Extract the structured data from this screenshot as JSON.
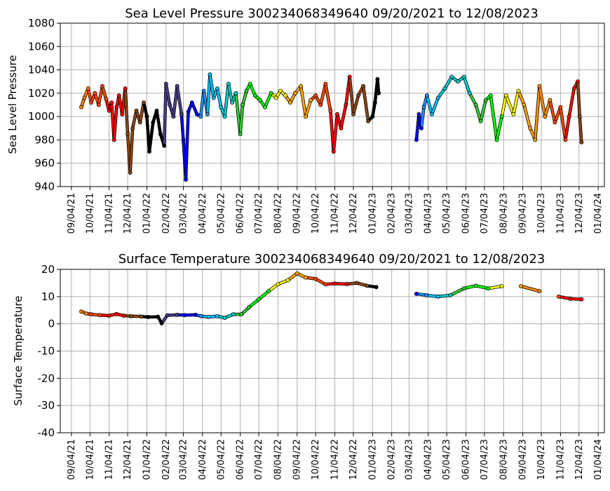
{
  "chart_data": [
    {
      "type": "scatter",
      "title": "Sea Level Pressure 300234068349640  09/20/2021 to 12/08/2023",
      "ylabel": "Sea Level Pressure",
      "xlabel": "",
      "ylim": [
        940,
        1080
      ],
      "yticks": [
        940,
        960,
        980,
        1000,
        1020,
        1040,
        1060,
        1080
      ],
      "grid": true,
      "x_tick_labels": [
        "09/04/21",
        "10/04/21",
        "11/04/21",
        "12/04/21",
        "01/04/22",
        "02/04/22",
        "03/04/22",
        "04/04/22",
        "05/04/22",
        "06/04/22",
        "07/04/22",
        "08/04/22",
        "09/04/22",
        "10/04/22",
        "11/04/22",
        "12/04/22",
        "01/04/23",
        "02/04/23",
        "03/04/23",
        "04/04/23",
        "05/04/23",
        "06/04/23",
        "07/04/23",
        "08/04/23",
        "09/04/23",
        "10/04/23",
        "11/04/23",
        "12/04/23",
        "01/04/24"
      ],
      "colors": [
        "#ff7f00",
        "#ff4500",
        "#ff0000",
        "#8b4513",
        "#000000",
        "#483d8b",
        "#0000ff",
        "#1e90ff",
        "#00bfff",
        "#00ced1",
        "#32cd32",
        "#00ff00",
        "#ffff00",
        "#ffa500",
        "#ff8c00",
        "#ff6347"
      ],
      "points": [
        {
          "x": "09/20/21",
          "y": 1008,
          "c": 0
        },
        {
          "x": "09/25/21",
          "y": 1016,
          "c": 0
        },
        {
          "x": "10/01/21",
          "y": 1024,
          "c": 0
        },
        {
          "x": "10/06/21",
          "y": 1012,
          "c": 1
        },
        {
          "x": "10/12/21",
          "y": 1020,
          "c": 1
        },
        {
          "x": "10/18/21",
          "y": 1010,
          "c": 1
        },
        {
          "x": "10/24/21",
          "y": 1026,
          "c": 1
        },
        {
          "x": "10/30/21",
          "y": 1015,
          "c": 1
        },
        {
          "x": "11/04/21",
          "y": 1005,
          "c": 2
        },
        {
          "x": "11/08/21",
          "y": 1012,
          "c": 2
        },
        {
          "x": "11/12/21",
          "y": 980,
          "c": 2
        },
        {
          "x": "11/16/21",
          "y": 1008,
          "c": 2
        },
        {
          "x": "11/20/21",
          "y": 1018,
          "c": 2
        },
        {
          "x": "11/25/21",
          "y": 1002,
          "c": 2
        },
        {
          "x": "11/30/21",
          "y": 1024,
          "c": 2
        },
        {
          "x": "12/04/21",
          "y": 985,
          "c": 3
        },
        {
          "x": "12/08/21",
          "y": 952,
          "c": 3
        },
        {
          "x": "12/12/21",
          "y": 990,
          "c": 3
        },
        {
          "x": "12/18/21",
          "y": 1005,
          "c": 3
        },
        {
          "x": "12/24/21",
          "y": 995,
          "c": 3
        },
        {
          "x": "12/30/21",
          "y": 1012,
          "c": 3
        },
        {
          "x": "01/04/22",
          "y": 1000,
          "c": 4
        },
        {
          "x": "01/08/22",
          "y": 970,
          "c": 4
        },
        {
          "x": "01/14/22",
          "y": 995,
          "c": 4
        },
        {
          "x": "01/20/22",
          "y": 1005,
          "c": 4
        },
        {
          "x": "01/26/22",
          "y": 985,
          "c": 4
        },
        {
          "x": "02/01/22",
          "y": 975,
          "c": 4
        },
        {
          "x": "02/04/22",
          "y": 1028,
          "c": 5
        },
        {
          "x": "02/10/22",
          "y": 1010,
          "c": 5
        },
        {
          "x": "02/16/22",
          "y": 1000,
          "c": 5
        },
        {
          "x": "02/22/22",
          "y": 1026,
          "c": 5
        },
        {
          "x": "03/01/22",
          "y": 1002,
          "c": 5
        },
        {
          "x": "03/04/22",
          "y": 980,
          "c": 6
        },
        {
          "x": "03/08/22",
          "y": 946,
          "c": 6
        },
        {
          "x": "03/12/22",
          "y": 1004,
          "c": 6
        },
        {
          "x": "03/18/22",
          "y": 1012,
          "c": 6
        },
        {
          "x": "03/26/22",
          "y": 1002,
          "c": 6
        },
        {
          "x": "04/01/22",
          "y": 1000,
          "c": 7
        },
        {
          "x": "04/06/22",
          "y": 1022,
          "c": 7
        },
        {
          "x": "04/12/22",
          "y": 1002,
          "c": 7
        },
        {
          "x": "04/16/22",
          "y": 1036,
          "c": 8
        },
        {
          "x": "04/22/22",
          "y": 1016,
          "c": 8
        },
        {
          "x": "04/28/22",
          "y": 1024,
          "c": 8
        },
        {
          "x": "05/04/22",
          "y": 1008,
          "c": 8
        },
        {
          "x": "05/10/22",
          "y": 1000,
          "c": 9
        },
        {
          "x": "05/16/22",
          "y": 1028,
          "c": 9
        },
        {
          "x": "05/22/22",
          "y": 1012,
          "c": 9
        },
        {
          "x": "05/28/22",
          "y": 1020,
          "c": 9
        },
        {
          "x": "06/04/22",
          "y": 985,
          "c": 10
        },
        {
          "x": "06/08/22",
          "y": 1010,
          "c": 10
        },
        {
          "x": "06/14/22",
          "y": 1022,
          "c": 10
        },
        {
          "x": "06/20/22",
          "y": 1028,
          "c": 11
        },
        {
          "x": "06/28/22",
          "y": 1018,
          "c": 11
        },
        {
          "x": "07/06/22",
          "y": 1014,
          "c": 11
        },
        {
          "x": "07/14/22",
          "y": 1008,
          "c": 11
        },
        {
          "x": "07/24/22",
          "y": 1020,
          "c": 11
        },
        {
          "x": "08/01/22",
          "y": 1016,
          "c": 12
        },
        {
          "x": "08/08/22",
          "y": 1022,
          "c": 12
        },
        {
          "x": "08/16/22",
          "y": 1018,
          "c": 12
        },
        {
          "x": "08/24/22",
          "y": 1012,
          "c": 13
        },
        {
          "x": "09/01/22",
          "y": 1020,
          "c": 13
        },
        {
          "x": "09/10/22",
          "y": 1026,
          "c": 13
        },
        {
          "x": "09/18/22",
          "y": 1000,
          "c": 13
        },
        {
          "x": "09/26/22",
          "y": 1014,
          "c": 13
        },
        {
          "x": "10/04/22",
          "y": 1018,
          "c": 1
        },
        {
          "x": "10/12/22",
          "y": 1010,
          "c": 1
        },
        {
          "x": "10/20/22",
          "y": 1028,
          "c": 1
        },
        {
          "x": "10/28/22",
          "y": 1005,
          "c": 1
        },
        {
          "x": "11/02/22",
          "y": 970,
          "c": 2
        },
        {
          "x": "11/08/22",
          "y": 1002,
          "c": 2
        },
        {
          "x": "11/14/22",
          "y": 990,
          "c": 2
        },
        {
          "x": "11/22/22",
          "y": 1010,
          "c": 2
        },
        {
          "x": "11/28/22",
          "y": 1034,
          "c": 2
        },
        {
          "x": "12/04/22",
          "y": 1002,
          "c": 3
        },
        {
          "x": "12/12/22",
          "y": 1018,
          "c": 3
        },
        {
          "x": "12/20/22",
          "y": 1026,
          "c": 3
        },
        {
          "x": "12/28/22",
          "y": 996,
          "c": 3
        },
        {
          "x": "01/04/23",
          "y": 1000,
          "c": 4
        },
        {
          "x": "01/08/23",
          "y": 1012,
          "c": 4
        },
        {
          "x": "01/12/23",
          "y": 1032,
          "c": 4
        },
        {
          "x": "01/14/23",
          "y": 1020,
          "c": 4
        },
        {
          "x": "03/16/23",
          "y": 980,
          "c": 6
        },
        {
          "x": "03/20/23",
          "y": 1002,
          "c": 6
        },
        {
          "x": "03/24/23",
          "y": 990,
          "c": 6
        },
        {
          "x": "03/28/23",
          "y": 1008,
          "c": 7
        },
        {
          "x": "04/02/23",
          "y": 1018,
          "c": 7
        },
        {
          "x": "04/10/23",
          "y": 1002,
          "c": 8
        },
        {
          "x": "04/20/23",
          "y": 1016,
          "c": 8
        },
        {
          "x": "05/01/23",
          "y": 1024,
          "c": 9
        },
        {
          "x": "05/12/23",
          "y": 1034,
          "c": 9
        },
        {
          "x": "05/22/23",
          "y": 1030,
          "c": 9
        },
        {
          "x": "06/01/23",
          "y": 1034,
          "c": 9
        },
        {
          "x": "06/10/23",
          "y": 1020,
          "c": 9
        },
        {
          "x": "06/20/23",
          "y": 1010,
          "c": 10
        },
        {
          "x": "06/28/23",
          "y": 996,
          "c": 10
        },
        {
          "x": "07/06/23",
          "y": 1014,
          "c": 10
        },
        {
          "x": "07/14/23",
          "y": 1018,
          "c": 11
        },
        {
          "x": "07/24/23",
          "y": 980,
          "c": 11
        },
        {
          "x": "08/01/23",
          "y": 1000,
          "c": 11
        },
        {
          "x": "08/08/23",
          "y": 1018,
          "c": 12
        },
        {
          "x": "08/20/23",
          "y": 1002,
          "c": 12
        },
        {
          "x": "08/28/23",
          "y": 1022,
          "c": 12
        },
        {
          "x": "09/06/23",
          "y": 1010,
          "c": 13
        },
        {
          "x": "09/16/23",
          "y": 990,
          "c": 13
        },
        {
          "x": "09/24/23",
          "y": 980,
          "c": 13
        },
        {
          "x": "10/01/23",
          "y": 1026,
          "c": 14
        },
        {
          "x": "10/10/23",
          "y": 1000,
          "c": 14
        },
        {
          "x": "10/18/23",
          "y": 1014,
          "c": 14
        },
        {
          "x": "10/26/23",
          "y": 995,
          "c": 1
        },
        {
          "x": "11/04/23",
          "y": 1008,
          "c": 1
        },
        {
          "x": "11/12/23",
          "y": 980,
          "c": 1
        },
        {
          "x": "11/18/23",
          "y": 1000,
          "c": 2
        },
        {
          "x": "11/26/23",
          "y": 1024,
          "c": 2
        },
        {
          "x": "12/02/23",
          "y": 1030,
          "c": 2
        },
        {
          "x": "12/05/23",
          "y": 1000,
          "c": 3
        },
        {
          "x": "12/08/23",
          "y": 978,
          "c": 3
        }
      ]
    },
    {
      "type": "scatter",
      "title": "Surface Temperature 300234068349640  09/20/2021 to 12/08/2023",
      "ylabel": "Surface Temperature",
      "xlabel": "",
      "ylim": [
        -40,
        20
      ],
      "yticks": [
        -40,
        -30,
        -20,
        -10,
        0,
        10,
        20
      ],
      "grid": true,
      "x_tick_labels": [
        "09/04/21",
        "10/04/21",
        "11/04/21",
        "12/04/21",
        "01/04/22",
        "02/04/22",
        "03/04/22",
        "04/04/22",
        "05/04/22",
        "06/04/22",
        "07/04/22",
        "08/04/22",
        "09/04/22",
        "10/04/22",
        "11/04/22",
        "12/04/22",
        "01/04/23",
        "02/04/23",
        "03/04/23",
        "04/04/23",
        "05/04/23",
        "06/04/23",
        "07/04/23",
        "08/04/23",
        "09/04/23",
        "10/04/23",
        "11/04/23",
        "12/04/23",
        "01/04/24"
      ],
      "points": [
        {
          "x": "09/20/21",
          "y": 4.5,
          "c": 0
        },
        {
          "x": "09/28/21",
          "y": 3.8,
          "c": 0
        },
        {
          "x": "10/06/21",
          "y": 3.5,
          "c": 1
        },
        {
          "x": "10/20/21",
          "y": 3.2,
          "c": 1
        },
        {
          "x": "11/04/21",
          "y": 3.0,
          "c": 2
        },
        {
          "x": "11/16/21",
          "y": 3.6,
          "c": 2
        },
        {
          "x": "11/28/21",
          "y": 3.0,
          "c": 2
        },
        {
          "x": "12/10/21",
          "y": 2.8,
          "c": 3
        },
        {
          "x": "12/26/21",
          "y": 2.7,
          "c": 3
        },
        {
          "x": "01/06/22",
          "y": 2.5,
          "c": 4
        },
        {
          "x": "01/22/22",
          "y": 2.6,
          "c": 4
        },
        {
          "x": "01/28/22",
          "y": 0.2,
          "c": 4
        },
        {
          "x": "02/06/22",
          "y": 3.1,
          "c": 5
        },
        {
          "x": "02/22/22",
          "y": 3.3,
          "c": 5
        },
        {
          "x": "03/06/22",
          "y": 3.2,
          "c": 6
        },
        {
          "x": "03/24/22",
          "y": 3.3,
          "c": 6
        },
        {
          "x": "04/02/22",
          "y": 2.8,
          "c": 7
        },
        {
          "x": "04/14/22",
          "y": 2.5,
          "c": 8
        },
        {
          "x": "04/28/22",
          "y": 2.8,
          "c": 8
        },
        {
          "x": "05/10/22",
          "y": 2.2,
          "c": 9
        },
        {
          "x": "05/24/22",
          "y": 3.5,
          "c": 9
        },
        {
          "x": "06/06/22",
          "y": 3.5,
          "c": 10
        },
        {
          "x": "06/18/22",
          "y": 6.0,
          "c": 10
        },
        {
          "x": "07/04/22",
          "y": 9.0,
          "c": 11
        },
        {
          "x": "07/20/22",
          "y": 12.0,
          "c": 11
        },
        {
          "x": "08/04/22",
          "y": 14.5,
          "c": 12
        },
        {
          "x": "08/20/22",
          "y": 16.0,
          "c": 12
        },
        {
          "x": "09/04/22",
          "y": 18.5,
          "c": 13
        },
        {
          "x": "09/18/22",
          "y": 17.0,
          "c": 13
        },
        {
          "x": "10/04/22",
          "y": 16.5,
          "c": 1
        },
        {
          "x": "10/20/22",
          "y": 14.5,
          "c": 1
        },
        {
          "x": "11/04/22",
          "y": 14.8,
          "c": 2
        },
        {
          "x": "11/24/22",
          "y": 14.6,
          "c": 2
        },
        {
          "x": "12/10/22",
          "y": 15.0,
          "c": 3
        },
        {
          "x": "12/26/22",
          "y": 14.0,
          "c": 3
        },
        {
          "x": "01/10/23",
          "y": 13.5,
          "c": 4
        },
        {
          "x": "03/16/23",
          "y": 11.0,
          "c": 6
        },
        {
          "x": "04/01/23",
          "y": 10.5,
          "c": 7
        },
        {
          "x": "04/20/23",
          "y": 10.0,
          "c": 8
        },
        {
          "x": "05/10/23",
          "y": 10.5,
          "c": 9
        },
        {
          "x": "06/01/23",
          "y": 13.0,
          "c": 10
        },
        {
          "x": "06/20/23",
          "y": 14.0,
          "c": 11
        },
        {
          "x": "07/10/23",
          "y": 13.0,
          "c": 11
        },
        {
          "x": "08/01/23",
          "y": 13.8,
          "c": 12
        },
        {
          "x": "09/01/23",
          "y": 13.8,
          "c": 13
        },
        {
          "x": "10/01/23",
          "y": 12.0,
          "c": 14
        },
        {
          "x": "11/01/23",
          "y": 10.0,
          "c": 1
        },
        {
          "x": "11/20/23",
          "y": 9.2,
          "c": 2
        },
        {
          "x": "12/08/23",
          "y": 9.0,
          "c": 2
        }
      ]
    }
  ]
}
